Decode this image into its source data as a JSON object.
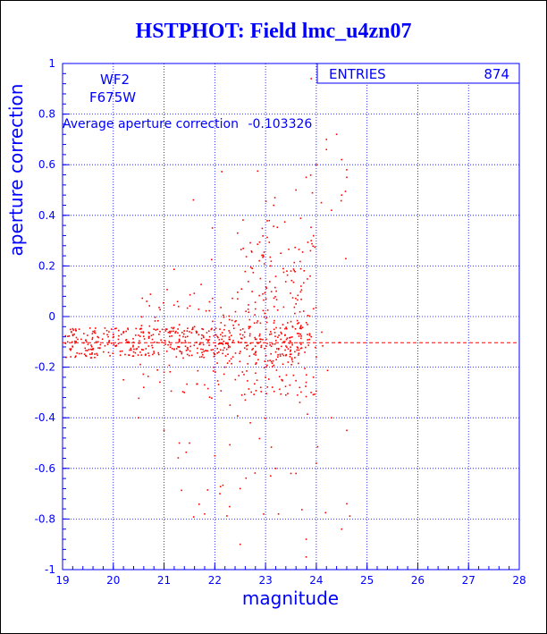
{
  "chart_data": {
    "type": "scatter",
    "title": "HSTPHOT: Field lmc_u4zn07",
    "xlabel": "magnitude",
    "ylabel": "aperture correction",
    "xlim": [
      19,
      28
    ],
    "ylim": [
      -1,
      1
    ],
    "x_ticks": [
      "19",
      "20",
      "21",
      "22",
      "23",
      "24",
      "25",
      "26",
      "27",
      "28"
    ],
    "y_ticks": [
      "-1",
      "-0.8",
      "-0.6",
      "-0.4",
      "-0.2",
      "0",
      "0.2",
      "0.4",
      "0.6",
      "0.8",
      "1"
    ],
    "grid": true,
    "chip": "WF2",
    "filter": "F675W",
    "average_label": "Average aperture correction",
    "average_value": -0.103326,
    "average_text": "-0.103326",
    "stats": {
      "label": "ENTRIES",
      "value": "874",
      "placement": "top-right"
    },
    "colors": {
      "axes": "#0000ff",
      "points": "#ff0000",
      "grid": "#0000ff",
      "title": "#0000ff"
    },
    "points": {
      "note_count": 874,
      "x": [
        19.1,
        19.3,
        19.5,
        19.7,
        19.9,
        20.1,
        20.3,
        20.5,
        20.7,
        20.9,
        21.1,
        21.3,
        21.5,
        21.7,
        21.9,
        22.1,
        22.3,
        22.5,
        22.7,
        22.9,
        23.1,
        23.3,
        23.5,
        23.7,
        23.9,
        19.2,
        19.6,
        20.0,
        20.4,
        20.8,
        21.2,
        21.6,
        22.0,
        22.4,
        22.8,
        23.2,
        23.6,
        24.0,
        20.2,
        20.6,
        21.0,
        21.4,
        21.8,
        22.2,
        22.6,
        23.0,
        23.4,
        23.8,
        22.9,
        23.1,
        23.3,
        23.5,
        23.7,
        23.9,
        24.1,
        24.3,
        24.5,
        23.6,
        23.8,
        24.0,
        24.2,
        24.4,
        24.6,
        23.9,
        24.2,
        24.5,
        24.6,
        20.5,
        21.0,
        21.5,
        22.0,
        22.3,
        22.7,
        23.2,
        23.6,
        24.0,
        24.3,
        24.6,
        21.3,
        21.8,
        22.1,
        22.5,
        23.1,
        23.5,
        23.8,
        24.5,
        24.6,
        22.5,
        23.8
      ],
      "y": [
        -0.1,
        -0.09,
        -0.11,
        -0.1,
        -0.08,
        -0.09,
        -0.1,
        -0.12,
        -0.08,
        -0.07,
        -0.1,
        -0.09,
        -0.06,
        -0.11,
        -0.08,
        -0.05,
        -0.12,
        -0.07,
        -0.04,
        -0.1,
        -0.06,
        -0.09,
        -0.02,
        -0.11,
        -0.08,
        -0.12,
        -0.13,
        -0.07,
        -0.14,
        -0.05,
        -0.13,
        -0.04,
        -0.15,
        -0.02,
        0.03,
        -0.14,
        0.05,
        -0.16,
        -0.25,
        -0.28,
        -0.22,
        -0.3,
        -0.27,
        -0.2,
        -0.33,
        -0.24,
        -0.31,
        -0.26,
        0.15,
        0.2,
        0.25,
        0.18,
        0.12,
        0.3,
        0.45,
        0.42,
        0.48,
        0.5,
        0.55,
        0.6,
        0.66,
        0.72,
        0.58,
        0.94,
        0.7,
        0.62,
        0.55,
        -0.4,
        -0.45,
        -0.5,
        -0.55,
        -0.35,
        -0.42,
        -0.6,
        -0.62,
        -0.58,
        -0.4,
        -0.45,
        -0.5,
        -0.78,
        -0.7,
        -0.9,
        -0.63,
        -0.62,
        -0.88,
        -0.84,
        -0.74,
        -0.68,
        -0.95
      ]
    }
  }
}
